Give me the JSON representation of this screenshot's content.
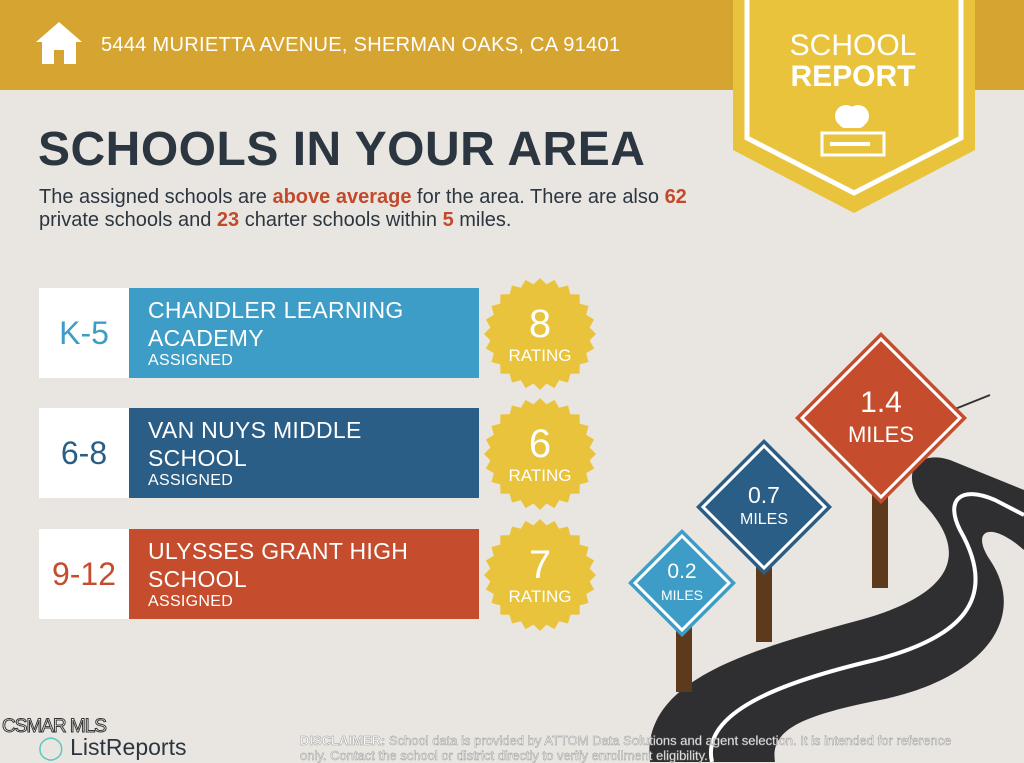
{
  "header": {
    "address": "5444 MURIETTA AVENUE, SHERMAN OAKS, CA 91401",
    "icon": "home-icon"
  },
  "badge": {
    "line1": "SCHOOL",
    "line2": "REPORT",
    "icon": "apple-books-icon"
  },
  "title": "SCHOOLS IN YOUR AREA",
  "intro": {
    "p1": "The assigned schools are ",
    "hl1": "above average",
    "p2": " for the area. There are also ",
    "private_count": "62",
    "p3": " private schools and ",
    "charter_count": "23",
    "p4": " charter schools within ",
    "miles": "5",
    "p5": " miles."
  },
  "schools": [
    {
      "grade": "K-5",
      "name": "CHANDLER LEARNING ACADEMY",
      "status": "ASSIGNED",
      "rating": "8",
      "rating_label": "RATING",
      "color": "#3E9DC6",
      "grade_color": "#3E9DC6"
    },
    {
      "grade": "6-8",
      "name": "VAN NUYS MIDDLE SCHOOL",
      "status": "ASSIGNED",
      "rating": "6",
      "rating_label": "RATING",
      "color": "#2A5E86",
      "grade_color": "#2A5E86"
    },
    {
      "grade": "9-12",
      "name": "ULYSSES GRANT HIGH SCHOOL",
      "status": "ASSIGNED",
      "rating": "7",
      "rating_label": "RATING",
      "color": "#C54C2C",
      "grade_color": "#C54C2C"
    }
  ],
  "distances": [
    {
      "value": "0.2",
      "unit": "MILES",
      "color": "#3E9DC6"
    },
    {
      "value": "0.7",
      "unit": "MILES",
      "color": "#2A5E86"
    },
    {
      "value": "1.4",
      "unit": "MILES",
      "color": "#C54C2C"
    }
  ],
  "footer": {
    "watermark": "CSMAR MLS",
    "brand": "ListReports",
    "disclaimer_label": "DISCLAIMER:",
    "disclaimer": " School data is provided by ATTOM Data Solutions and agent selection. It is intended for reference only. Contact the school or district directly to verify enrollment eligibility."
  }
}
